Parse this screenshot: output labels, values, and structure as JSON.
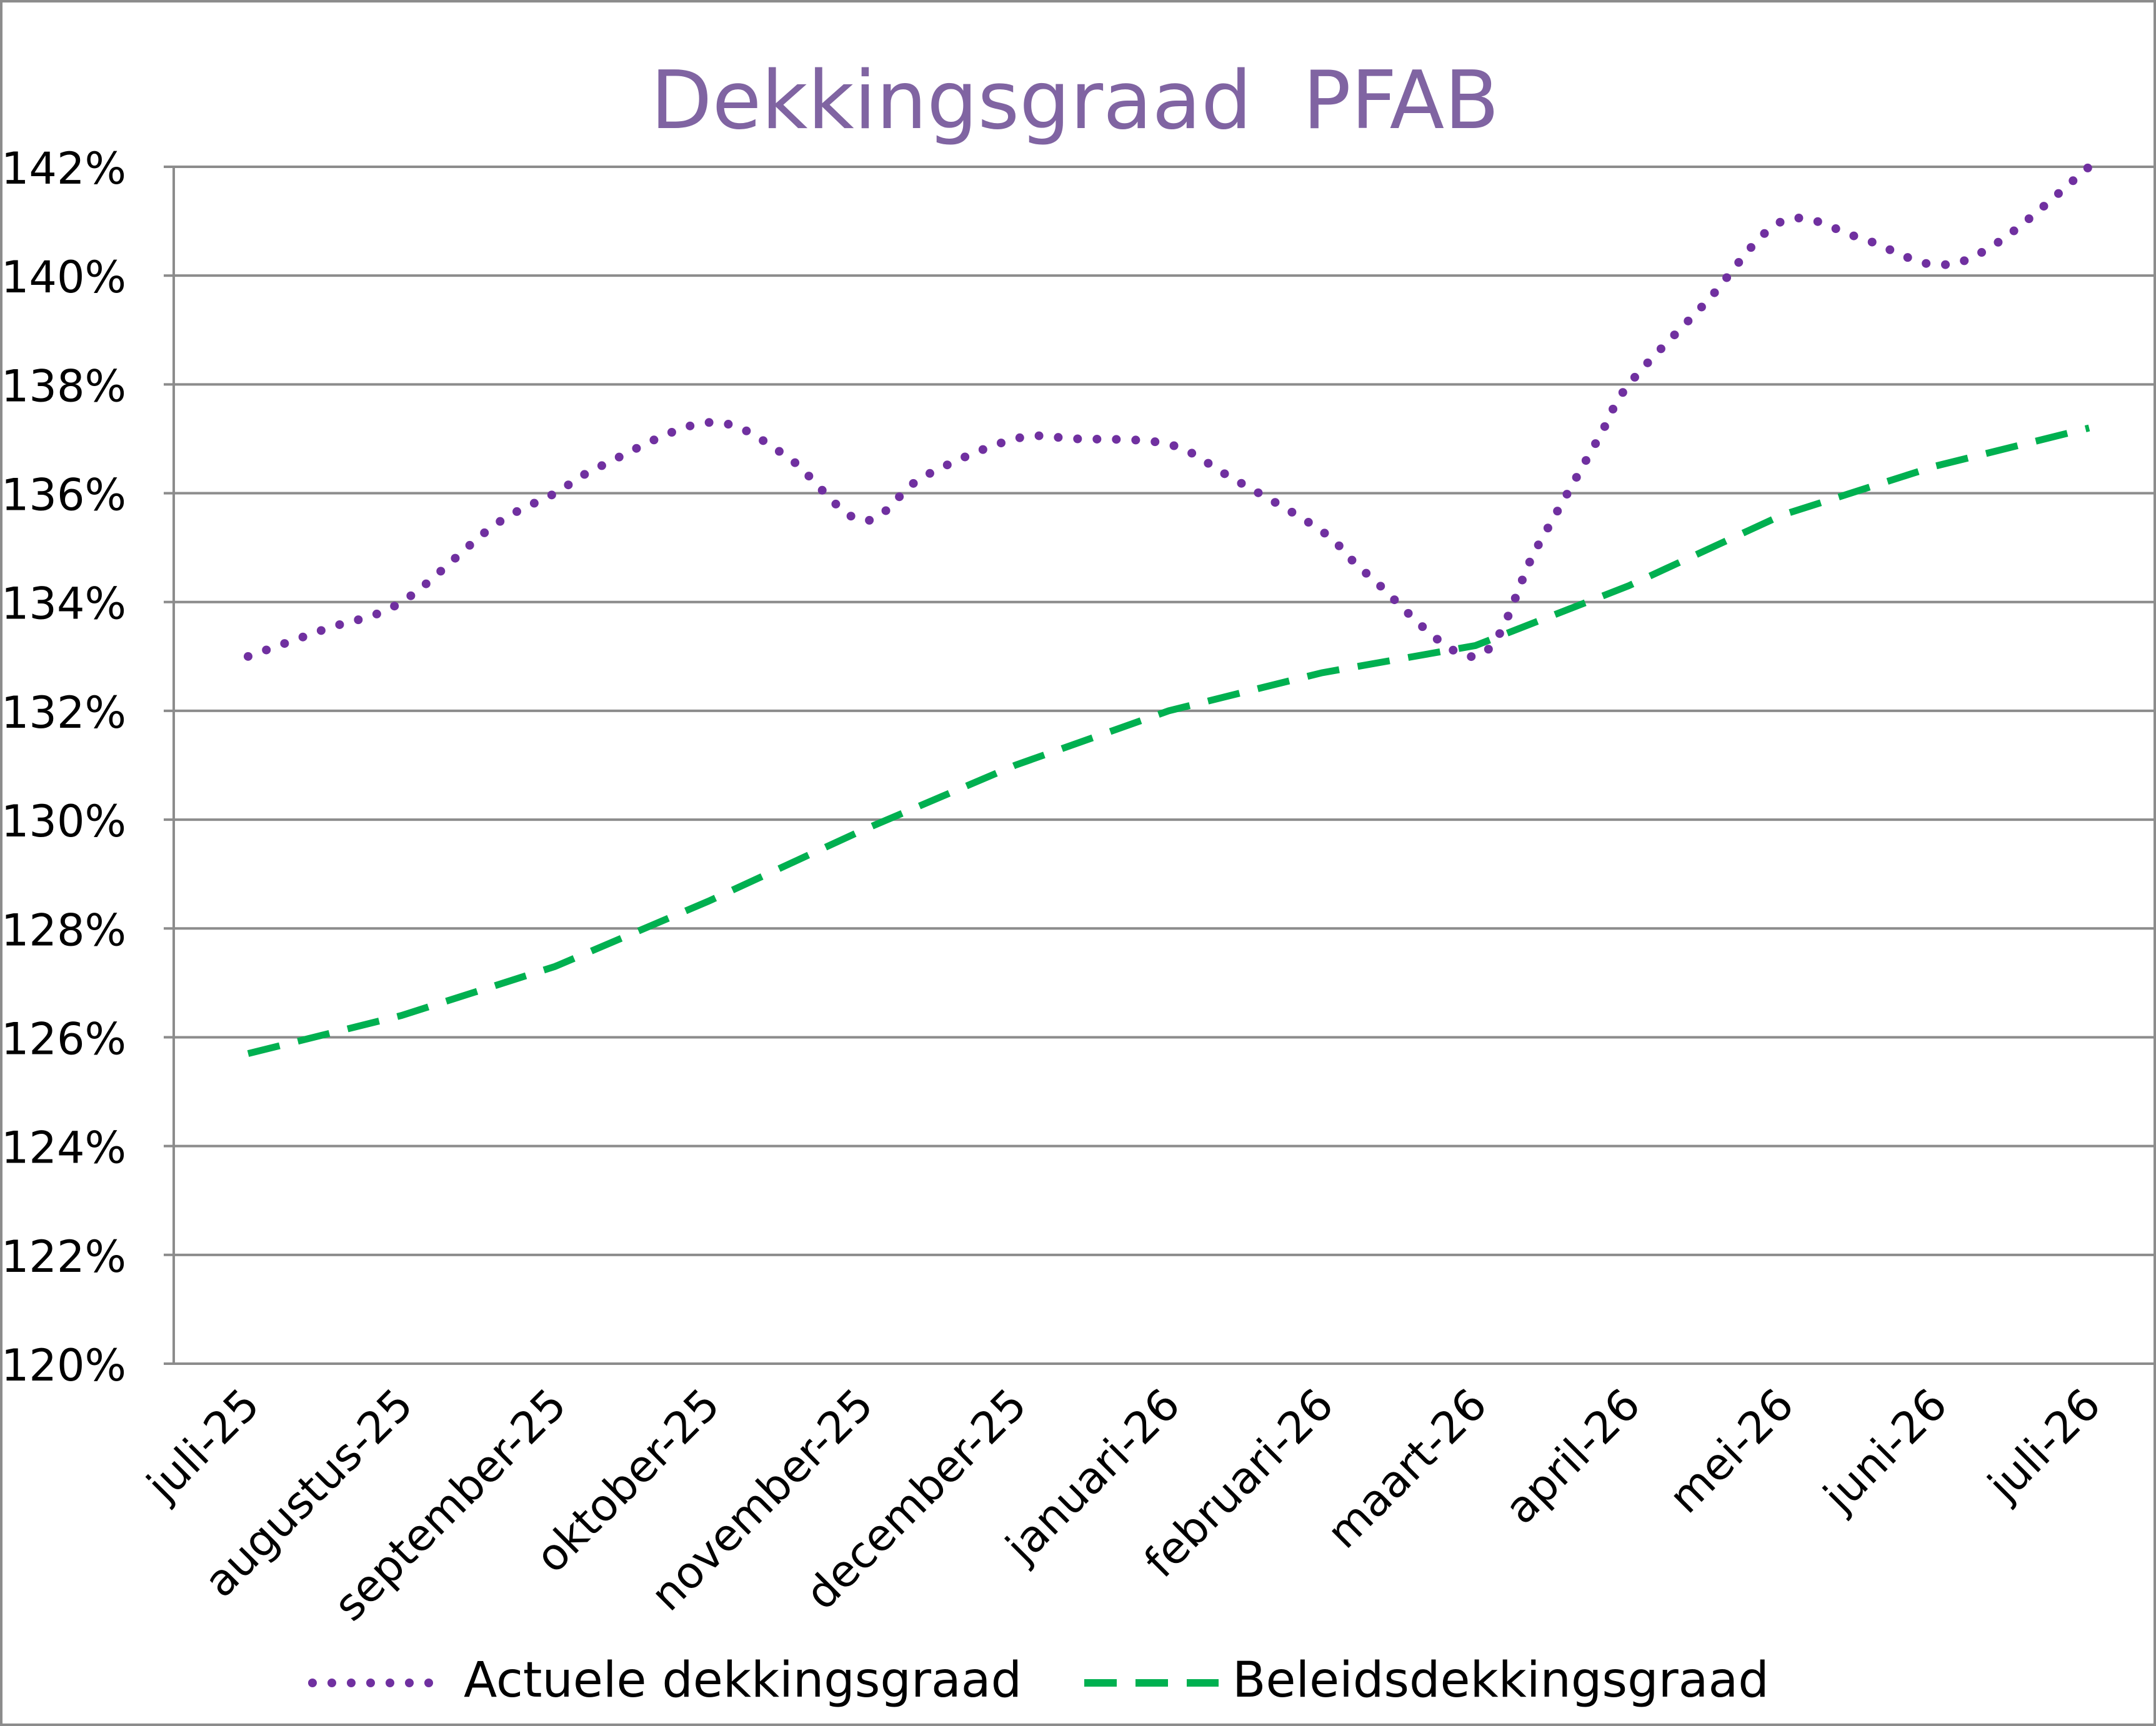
{
  "chart_data": {
    "type": "line",
    "title": "Dekkingsgraad  PFAB",
    "xlabel": "",
    "ylabel": "",
    "categories": [
      "juli-25",
      "augustus-25",
      "september-25",
      "oktober-25",
      "november-25",
      "december-25",
      "januari-26",
      "februari-26",
      "maart-26",
      "april-26",
      "mei-26",
      "juni-26",
      "juli-26"
    ],
    "y_ticks": [
      "120%",
      "122%",
      "124%",
      "126%",
      "128%",
      "130%",
      "132%",
      "134%",
      "136%",
      "138%",
      "140%",
      "142%"
    ],
    "ylim": [
      120,
      142
    ],
    "grid": true,
    "legend_position": "bottom",
    "series": [
      {
        "name": "Actuele dekkingsgraad",
        "style": "dotted",
        "color": "#7030A0",
        "x": [
          0,
          0.5,
          1,
          1.6,
          2,
          2.3,
          3,
          3.5,
          4,
          4.4,
          5,
          5.4,
          6,
          6.4,
          7,
          7.3,
          8,
          8.4,
          8.8,
          9,
          9.5,
          10,
          10.5,
          11,
          11.4,
          12
        ],
        "values": [
          133.0,
          133.5,
          134.0,
          135.4,
          136.0,
          136.5,
          137.3,
          136.7,
          135.5,
          136.3,
          137.0,
          137.0,
          136.9,
          136.3,
          135.3,
          134.5,
          133.0,
          135.0,
          137.0,
          138.0,
          139.5,
          141.0,
          140.7,
          140.2,
          140.6,
          142.0
        ]
      },
      {
        "name": "Beleidsdekkingsgraad",
        "style": "dashed",
        "color": "#00B050",
        "x": [
          0,
          1,
          2,
          3,
          4,
          5,
          6,
          7,
          8,
          9,
          10,
          11,
          12
        ],
        "values": [
          125.7,
          126.4,
          127.3,
          128.5,
          129.8,
          131.0,
          132.0,
          132.7,
          133.2,
          134.3,
          135.6,
          136.5,
          137.2
        ]
      }
    ]
  },
  "colors": {
    "title": "#8064A2",
    "grid": "#8C8C8C",
    "axis": "#8C8C8C",
    "text": "#000000"
  }
}
